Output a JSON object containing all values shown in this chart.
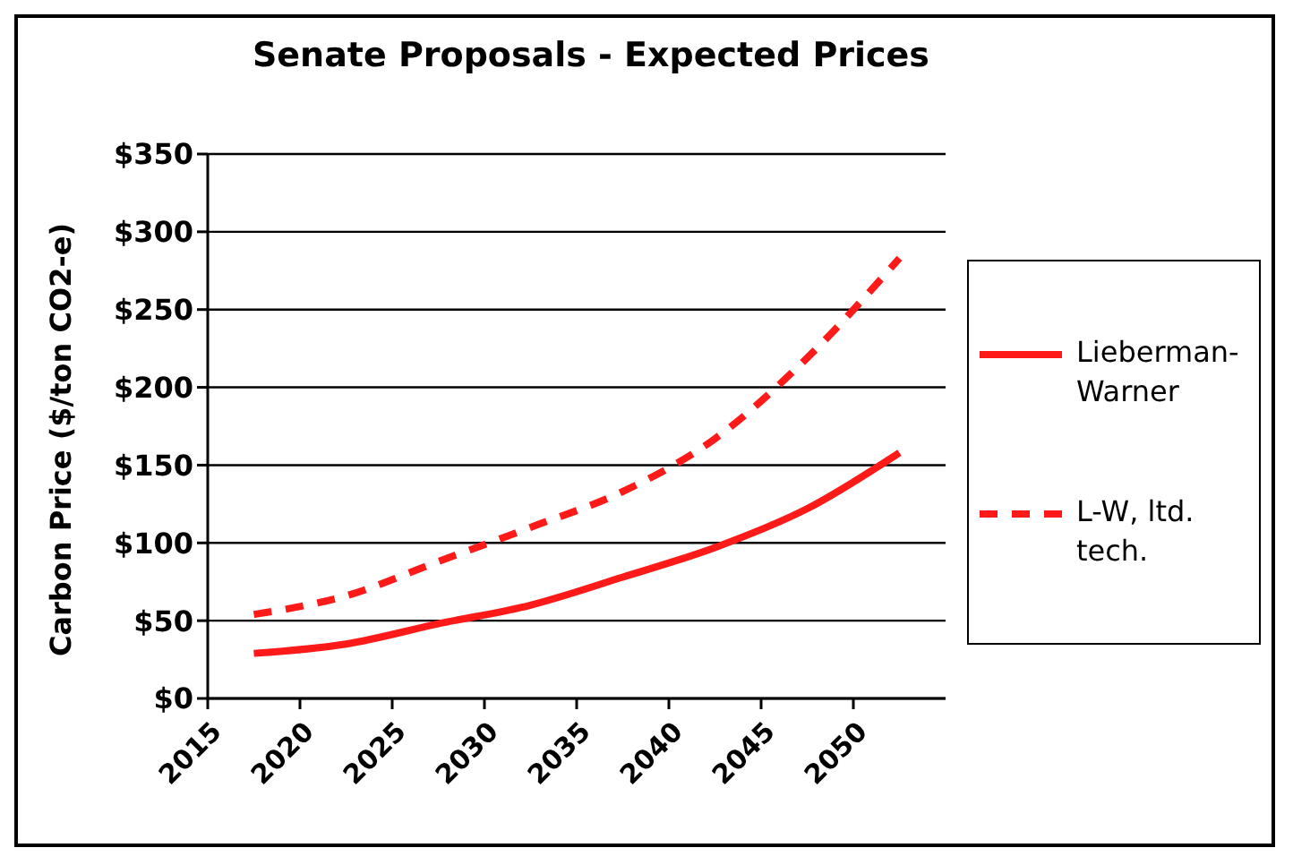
{
  "chart_data": {
    "type": "line",
    "title": "Senate Proposals - Expected Prices",
    "ylabel": "Carbon Price ($/ton CO2-e)",
    "x": [
      2017.5,
      2022.5,
      2027.5,
      2032.5,
      2037.5,
      2042.5,
      2047.5,
      2052.5
    ],
    "series": [
      {
        "name": "Lieberman-Warner",
        "color": "#ff1a1a",
        "line_style": "solid",
        "values": [
          29,
          35,
          48,
          60,
          78,
          97,
          122,
          158
        ]
      },
      {
        "name": "L-W, ltd. tech.",
        "color": "#ff1a1a",
        "line_style": "dashed",
        "values": [
          54,
          66,
          88,
          110,
          133,
          167,
          219,
          283
        ]
      }
    ],
    "xlim": [
      2015,
      2055
    ],
    "xticks": [
      2015,
      2020,
      2025,
      2030,
      2035,
      2040,
      2045,
      2050
    ],
    "ylim": [
      0,
      350
    ],
    "yticks": [
      {
        "value": 0,
        "label": "$0"
      },
      {
        "value": 50,
        "label": "$50"
      },
      {
        "value": 100,
        "label": "$100"
      },
      {
        "value": 150,
        "label": "$150"
      },
      {
        "value": 200,
        "label": "$200"
      },
      {
        "value": 250,
        "label": "$250"
      },
      {
        "value": 300,
        "label": "$300"
      },
      {
        "value": 350,
        "label": "$350"
      }
    ],
    "grid": "y",
    "legend": "right",
    "marker": "none"
  }
}
